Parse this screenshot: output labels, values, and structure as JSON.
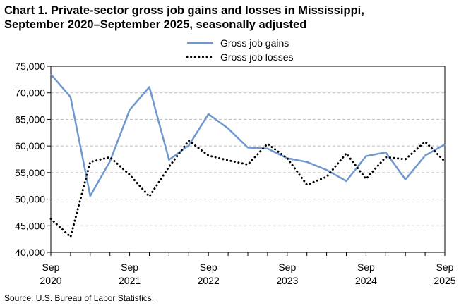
{
  "title_lines": [
    "Chart 1. Private-sector gross job gains and losses in Mississippi,",
    "September 2020–September 2025, seasonally adjusted"
  ],
  "source": "Source: U.S. Bureau of Labor Statistics.",
  "chart_data": {
    "type": "line",
    "title": "Chart 1. Private-sector gross job gains and losses in Mississippi, September 2020–September 2025, seasonally adjusted",
    "xlabel": "",
    "ylabel": "",
    "ylim": [
      40000,
      75000
    ],
    "yticks": [
      40000,
      45000,
      50000,
      55000,
      60000,
      65000,
      70000,
      75000
    ],
    "ytick_labels": [
      "40,000",
      "45,000",
      "50,000",
      "55,000",
      "60,000",
      "65,000",
      "70,000",
      "75,000"
    ],
    "grid": "horizontal dashed",
    "legend_position": "top-center",
    "x": [
      "Sep 2020",
      "Dec 2020",
      "Mar 2021",
      "Jun 2021",
      "Sep 2021",
      "Dec 2021",
      "Mar 2022",
      "Jun 2022",
      "Sep 2022",
      "Dec 2022",
      "Mar 2023",
      "Jun 2023",
      "Sep 2023",
      "Dec 2023",
      "Mar 2024",
      "Jun 2024",
      "Sep 2024",
      "Dec 2024",
      "Mar 2025",
      "Jun 2025",
      "Sep 2025"
    ],
    "xtick_labels": [
      {
        "index": 0,
        "month": "Sep",
        "year": "2020"
      },
      {
        "index": 4,
        "month": "Sep",
        "year": "2021"
      },
      {
        "index": 8,
        "month": "Sep",
        "year": "2022"
      },
      {
        "index": 12,
        "month": "Sep",
        "year": "2023"
      },
      {
        "index": 16,
        "month": "Sep",
        "year": "2024"
      },
      {
        "index": 20,
        "month": "Sep",
        "year": "2025"
      }
    ],
    "series": [
      {
        "name": "Gross job gains",
        "color": "#6f98cf",
        "style": "solid",
        "values": [
          73500,
          69200,
          50600,
          57100,
          66800,
          71100,
          57400,
          60100,
          66000,
          63300,
          59700,
          59500,
          57700,
          57000,
          55500,
          53400,
          58100,
          58800,
          53700,
          58200,
          60300
        ]
      },
      {
        "name": "Gross job losses",
        "color": "#000000",
        "style": "dotted",
        "values": [
          46300,
          42900,
          57000,
          57900,
          54600,
          50500,
          56100,
          61000,
          58200,
          57300,
          56500,
          60400,
          57700,
          52700,
          54200,
          58600,
          53800,
          57900,
          57500,
          60800,
          57100
        ]
      }
    ]
  }
}
